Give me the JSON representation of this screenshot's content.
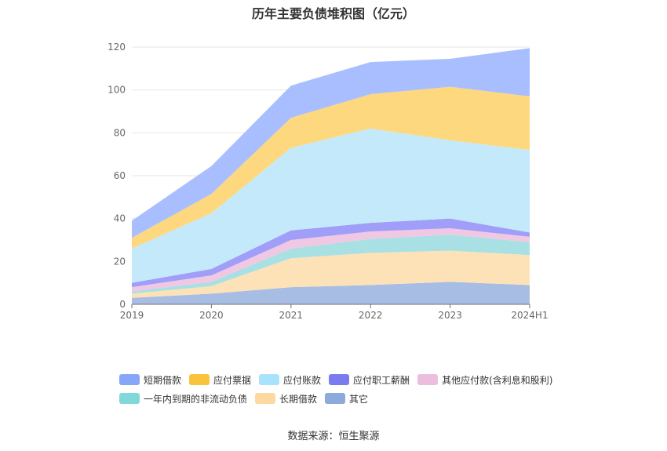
{
  "chart_data": {
    "type": "area",
    "stacked": true,
    "title": "历年主要负债堆积图（亿元）",
    "categories": [
      "2019",
      "2020",
      "2021",
      "2022",
      "2023",
      "2024H1"
    ],
    "ylim": [
      0,
      120
    ],
    "yticks": [
      "0",
      "20",
      "40",
      "60",
      "80",
      "100",
      "120"
    ],
    "grid": true,
    "legend_position": "bottom",
    "series": [
      {
        "name": "其它",
        "color": "#a8bde3",
        "values": [
          3,
          5,
          8,
          9,
          10.5,
          9
        ]
      },
      {
        "name": "长期借款",
        "color": "#fde2b8",
        "values": [
          2,
          3.5,
          13.5,
          15,
          14.5,
          14
        ]
      },
      {
        "name": "一年内到期的非流动负债",
        "color": "#a8e0e3",
        "values": [
          1,
          2,
          4.5,
          6.5,
          7.5,
          6
        ]
      },
      {
        "name": "其他应付款(含利息和股利)",
        "color": "#f0c8e3",
        "values": [
          2,
          3,
          4,
          3.5,
          3,
          2.5
        ]
      },
      {
        "name": "应付职工薪酬",
        "color": "#a09ef8",
        "values": [
          2,
          3,
          4.5,
          4,
          4.5,
          2
        ]
      },
      {
        "name": "应付账款",
        "color": "#c3e9fb",
        "values": [
          16,
          26,
          38.5,
          44,
          36.5,
          38.5
        ]
      },
      {
        "name": "应付票据",
        "color": "#fed87e",
        "values": [
          5,
          9,
          14,
          16,
          25,
          25
        ]
      },
      {
        "name": "短期借款",
        "color": "#a8beff",
        "values": [
          8,
          13,
          15,
          15,
          13,
          22.5
        ]
      }
    ],
    "legend_rows": [
      [
        {
          "name": "短期借款",
          "color": "#86a6fa"
        },
        {
          "name": "应付票据",
          "color": "#fbc33c"
        },
        {
          "name": "应付账款",
          "color": "#a8e2fb"
        },
        {
          "name": "应付职工薪酬",
          "color": "#7b7bf0"
        },
        {
          "name": "其他应付款(含利息和股利)",
          "color": "#ecbede"
        }
      ],
      [
        {
          "name": "一年内到期的非流动负债",
          "color": "#80d8d8"
        },
        {
          "name": "长期借款",
          "color": "#fdd9a0"
        },
        {
          "name": "其它",
          "color": "#8ea9dc"
        }
      ]
    ]
  },
  "footer": {
    "source": "数据来源：恒生聚源"
  }
}
